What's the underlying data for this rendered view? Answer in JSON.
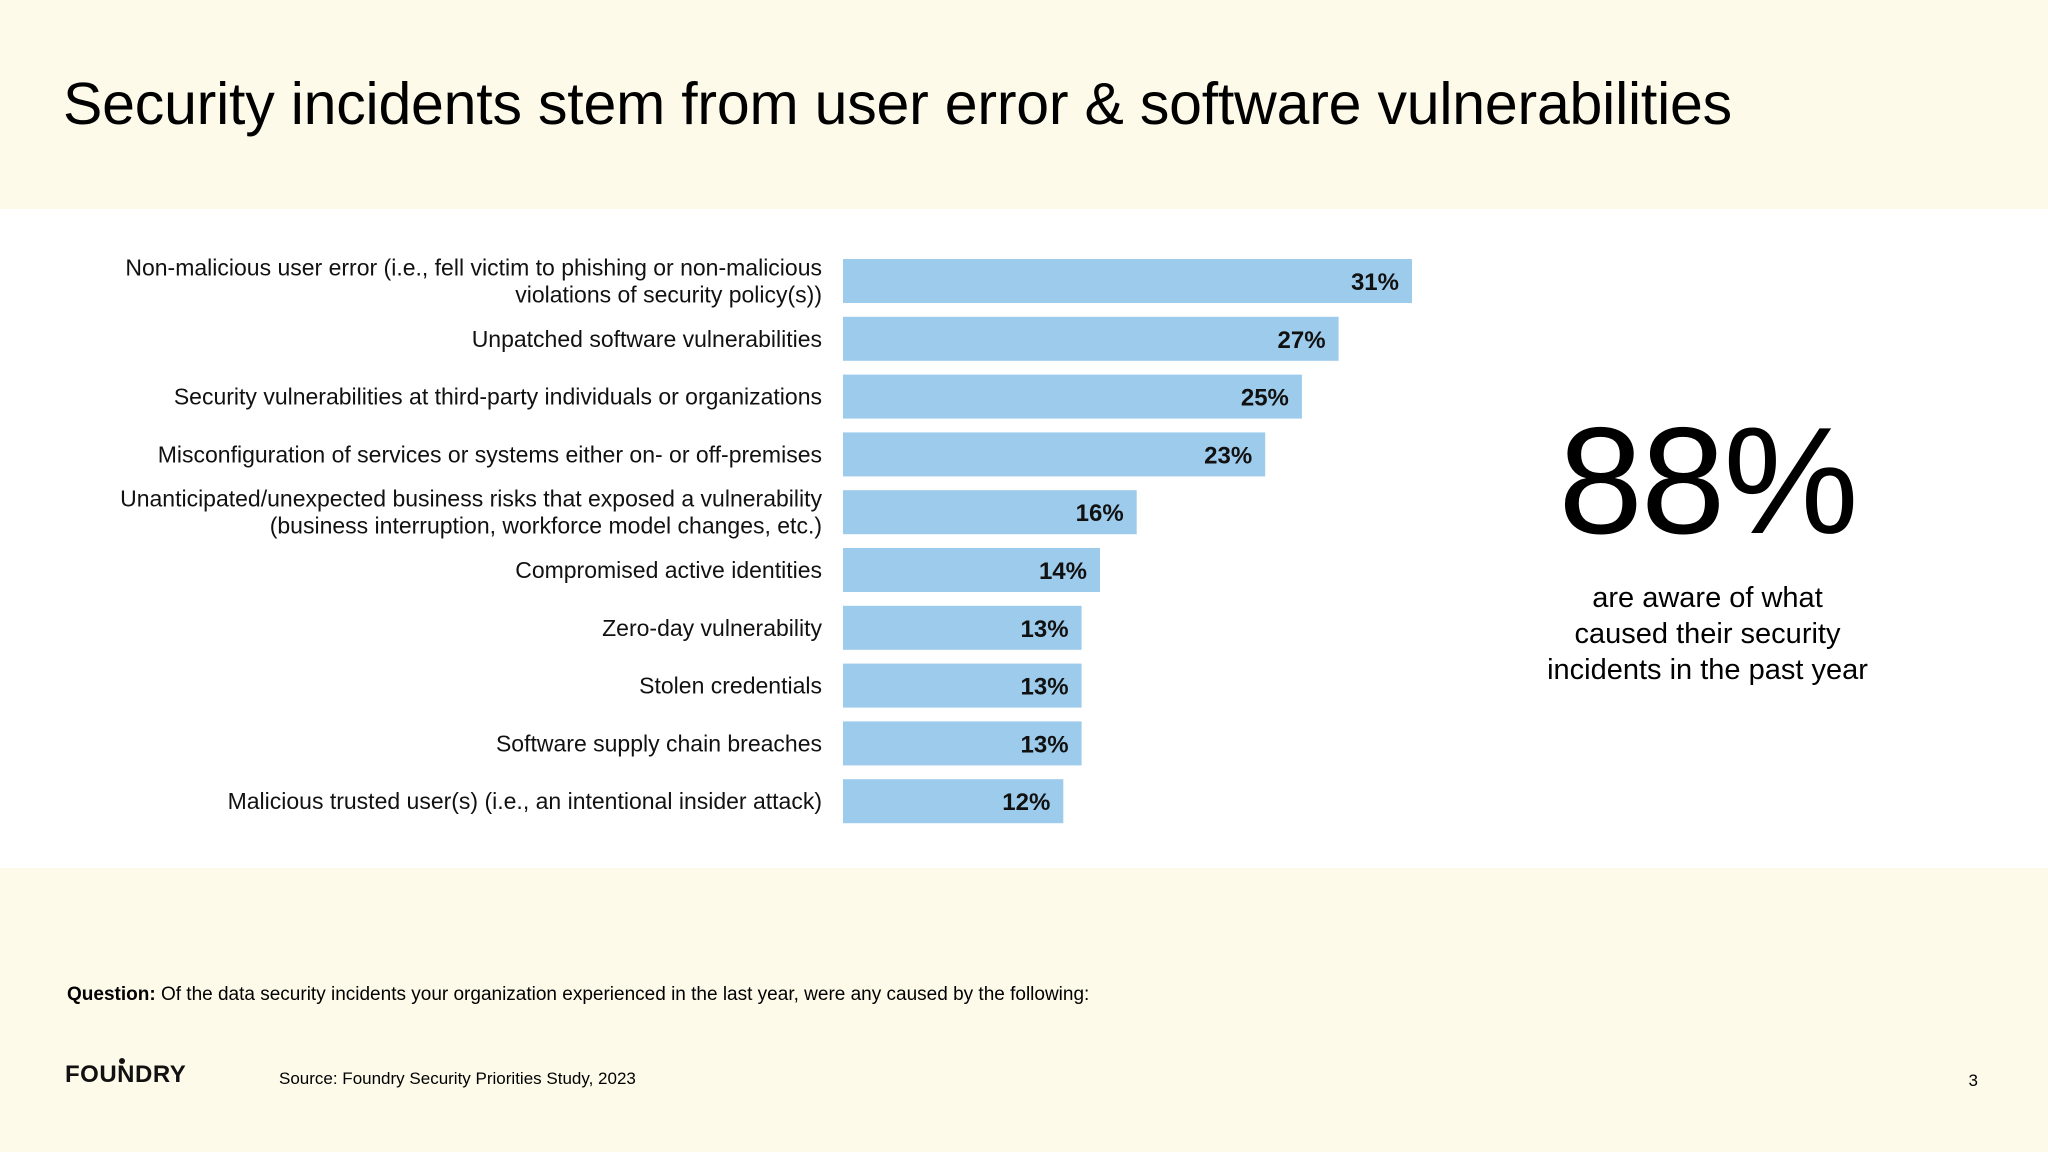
{
  "title": "Security incidents stem from user error & software vulnerabilities",
  "chart_data": {
    "type": "bar",
    "orientation": "horizontal",
    "categories": [
      "Non-malicious user error (i.e., fell victim to phishing or non-malicious violations of security policy(s))",
      "Unpatched software vulnerabilities",
      "Security vulnerabilities at third-party individuals or organizations",
      "Misconfiguration of services or systems either on- or off-premises",
      "Unanticipated/unexpected business risks that exposed a vulnerability (business interruption, workforce model changes, etc.)",
      "Compromised active identities",
      "Zero-day vulnerability",
      "Stolen credentials",
      "Software supply chain breaches",
      "Malicious trusted user(s) (i.e., an intentional insider attack)"
    ],
    "category_lines": [
      [
        "Non-malicious user error (i.e., fell victim to phishing or non-malicious",
        "violations of security policy(s))"
      ],
      [
        "Unpatched software vulnerabilities"
      ],
      [
        "Security vulnerabilities at third-party individuals or organizations"
      ],
      [
        "Misconfiguration of services or systems either on- or off-premises"
      ],
      [
        "Unanticipated/unexpected business risks that exposed a vulnerability",
        "(business interruption, workforce model changes, etc.)"
      ],
      [
        "Compromised active identities"
      ],
      [
        "Zero-day vulnerability"
      ],
      [
        "Stolen credentials"
      ],
      [
        "Software supply chain breaches"
      ],
      [
        "Malicious trusted user(s) (i.e., an intentional insider attack)"
      ]
    ],
    "values": [
      31,
      27,
      25,
      23,
      16,
      14,
      13,
      13,
      13,
      12
    ],
    "value_labels": [
      "31%",
      "27%",
      "25%",
      "23%",
      "16%",
      "14%",
      "13%",
      "13%",
      "13%",
      "12%"
    ],
    "bar_color": "#9dcbec",
    "xlim": [
      0,
      31
    ]
  },
  "callout": {
    "value": "88%",
    "caption": "are aware of what\ncaused their security\nincidents in the past year"
  },
  "question": {
    "label": "Question:",
    "text": "Of the data security incidents your organization experienced in the last year, were any caused by the following:"
  },
  "logo_text": "FOUNDRY",
  "source": "Source: Foundry Security Priorities Study, 2023",
  "page_number": "3",
  "colors": {
    "background": "#fdfaea",
    "panel": "#ffffff",
    "bar": "#9dcbec"
  }
}
